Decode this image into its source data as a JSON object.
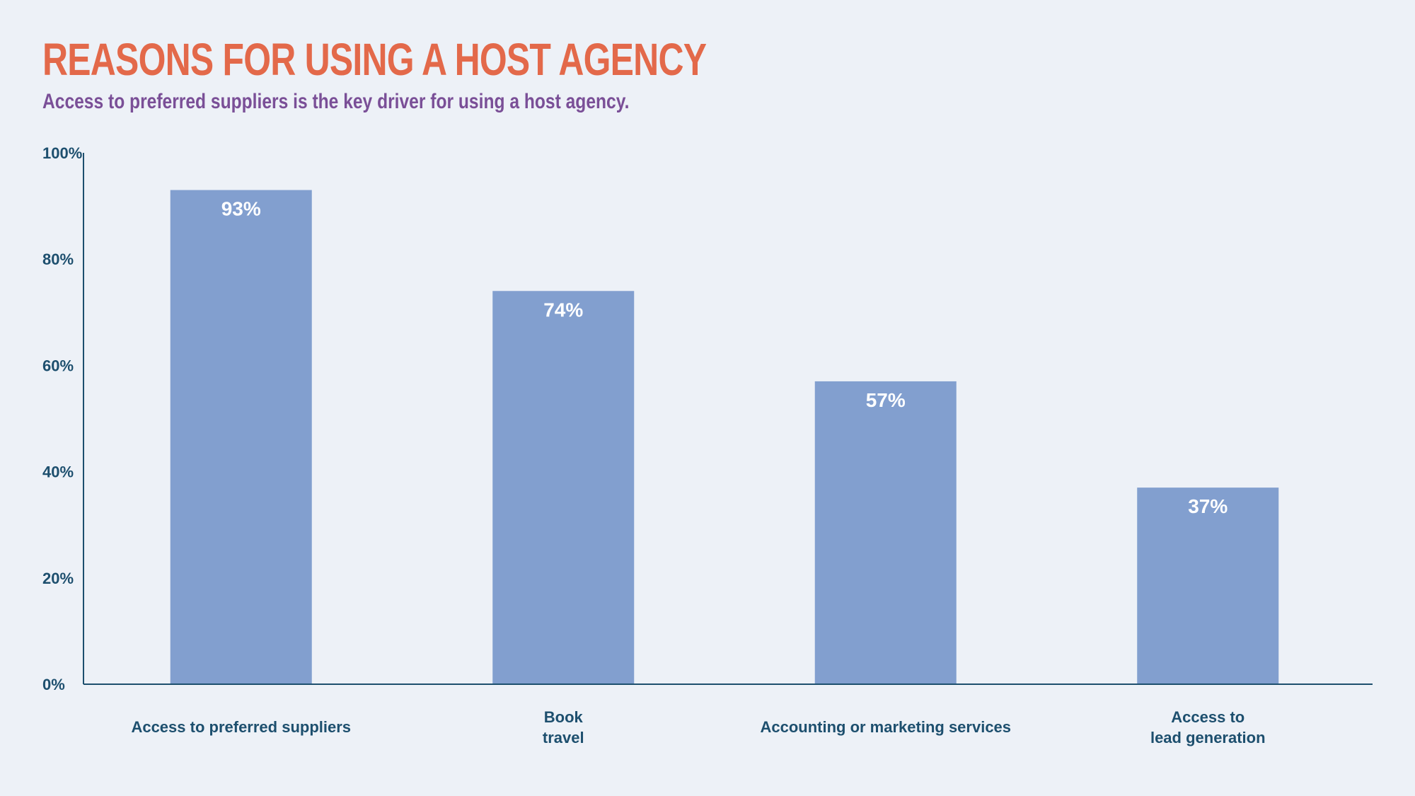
{
  "header": {
    "title": "REASONS FOR USING A HOST AGENCY",
    "subtitle": "Access to preferred suppliers is the key driver for using a host agency."
  },
  "colors": {
    "background": "#edf1f7",
    "title": "#e3694a",
    "subtitle": "#7a4f97",
    "axis": "#1d4f6e",
    "bar": "#829fcf",
    "bar_label": "#ffffff"
  },
  "chart_data": {
    "type": "bar",
    "title": "REASONS FOR USING A HOST AGENCY",
    "subtitle": "Access to preferred suppliers is the key driver for using a host agency.",
    "xlabel": "",
    "ylabel": "",
    "categories": [
      [
        "Access to preferred suppliers"
      ],
      [
        "Book",
        "travel"
      ],
      [
        "Accounting or marketing services"
      ],
      [
        "Access to",
        "lead generation"
      ]
    ],
    "values": [
      93,
      74,
      57,
      37
    ],
    "data_labels": [
      "93%",
      "74%",
      "57%",
      "37%"
    ],
    "ylim": [
      0,
      100
    ],
    "yticks": [
      0,
      20,
      40,
      60,
      80,
      100
    ],
    "ytick_labels": [
      "0%",
      "20%",
      "40%",
      "60%",
      "80%",
      "100%"
    ],
    "grid": false,
    "legend": "none"
  }
}
